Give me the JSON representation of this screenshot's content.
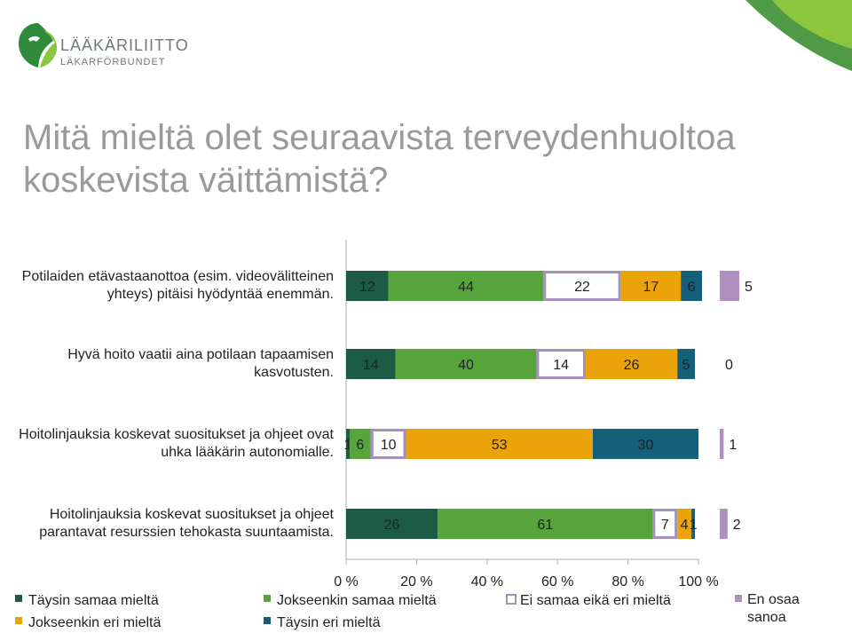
{
  "header": {
    "logo_line1": "LÄÄKÄRILIITTO",
    "logo_line2": "LÄKARFÖRBUNDET",
    "title": "Mitä mieltä olet seuraavista terveydenhuoltoa koskevista väittämistä?"
  },
  "colors": {
    "tays_samaa": "#1e5b46",
    "jok_samaa": "#58a43c",
    "ei_samaa": "#a48fbd",
    "jok_eri": "#eaa40a",
    "tays_eri": "#165f7a",
    "en_osaa": "#b08fc0"
  },
  "chart_data": {
    "type": "bar",
    "orientation": "horizontal-stacked-100",
    "categories": [
      [
        "Potilaiden etävastaanottoa (esim. videovälitteinen",
        "yhteys) pitäisi hyödyntää enemmän."
      ],
      [
        "Hyvä hoito vaatii aina potilaan tapaamisen",
        "kasvotusten."
      ],
      [
        "Hoitolinjauksia koskevat suositukset ja ohjeet ovat",
        "uhka lääkärin autonomialle."
      ],
      [
        "Hoitolinjauksia koskevat suositukset ja ohjeet",
        "parantavat resurssien tehokasta suuntaamista."
      ]
    ],
    "series": [
      {
        "name": "Täysin samaa mieltä",
        "values": [
          12,
          14,
          1,
          26
        ]
      },
      {
        "name": "Jokseenkin samaa mieltä",
        "values": [
          44,
          40,
          6,
          61
        ]
      },
      {
        "name": "Ei samaa eikä eri mieltä",
        "values": [
          22,
          14,
          10,
          7
        ]
      },
      {
        "name": "Jokseenkin eri mieltä",
        "values": [
          17,
          26,
          53,
          4
        ]
      },
      {
        "name": "Täysin eri mieltä",
        "values": [
          6,
          5,
          30,
          1
        ]
      }
    ],
    "separate_series": {
      "name": "En osaa sanoa",
      "values": [
        5,
        0,
        1,
        2
      ]
    },
    "x_ticks": [
      "0 %",
      "20 %",
      "40 %",
      "60 %",
      "80 %",
      "100 %"
    ],
    "xlim": [
      0,
      100
    ],
    "legend_position": "bottom"
  }
}
